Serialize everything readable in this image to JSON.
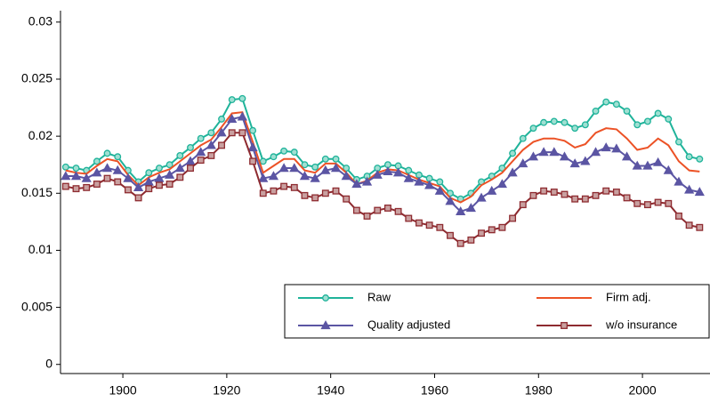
{
  "chart_data": {
    "type": "line",
    "x": [
      1889,
      1891,
      1893,
      1895,
      1897,
      1899,
      1901,
      1903,
      1905,
      1907,
      1909,
      1911,
      1913,
      1915,
      1917,
      1919,
      1921,
      1923,
      1925,
      1927,
      1929,
      1931,
      1933,
      1935,
      1937,
      1939,
      1941,
      1943,
      1945,
      1947,
      1949,
      1951,
      1953,
      1955,
      1957,
      1959,
      1961,
      1963,
      1965,
      1967,
      1969,
      1971,
      1973,
      1975,
      1977,
      1979,
      1981,
      1983,
      1985,
      1987,
      1989,
      1991,
      1993,
      1995,
      1997,
      1999,
      2001,
      2003,
      2005,
      2007,
      2009,
      2011
    ],
    "series": [
      {
        "name": "Raw",
        "color": "#1fb39a",
        "marker": "circle",
        "values": [
          0.0173,
          0.0172,
          0.017,
          0.0178,
          0.0185,
          0.0182,
          0.017,
          0.016,
          0.0168,
          0.0172,
          0.0175,
          0.0183,
          0.019,
          0.0198,
          0.0203,
          0.0215,
          0.0232,
          0.0233,
          0.0205,
          0.0178,
          0.0182,
          0.0187,
          0.0186,
          0.0175,
          0.0173,
          0.018,
          0.018,
          0.0172,
          0.0162,
          0.0165,
          0.0172,
          0.0175,
          0.0174,
          0.017,
          0.0166,
          0.0163,
          0.016,
          0.015,
          0.0145,
          0.015,
          0.016,
          0.0165,
          0.0172,
          0.0185,
          0.0198,
          0.0207,
          0.0212,
          0.0213,
          0.0212,
          0.0207,
          0.021,
          0.0222,
          0.023,
          0.0228,
          0.0222,
          0.021,
          0.0213,
          0.022,
          0.0215,
          0.0195,
          0.0182,
          0.018
        ]
      },
      {
        "name": "Firm adj.",
        "color": "#ec5226",
        "marker": "none",
        "values": [
          0.017,
          0.0168,
          0.0167,
          0.0174,
          0.018,
          0.0178,
          0.0166,
          0.0157,
          0.0164,
          0.0168,
          0.0171,
          0.0178,
          0.0185,
          0.0192,
          0.0197,
          0.0208,
          0.022,
          0.0221,
          0.0195,
          0.0168,
          0.0174,
          0.018,
          0.018,
          0.017,
          0.0168,
          0.0176,
          0.0176,
          0.0168,
          0.0158,
          0.0161,
          0.0168,
          0.0171,
          0.017,
          0.0166,
          0.0162,
          0.0159,
          0.0156,
          0.0146,
          0.0142,
          0.0147,
          0.0157,
          0.0162,
          0.0168,
          0.0178,
          0.0188,
          0.0195,
          0.0198,
          0.0198,
          0.0196,
          0.019,
          0.0193,
          0.0203,
          0.0207,
          0.0206,
          0.0198,
          0.0188,
          0.019,
          0.0198,
          0.0192,
          0.0178,
          0.017,
          0.0169
        ]
      },
      {
        "name": "Quality adjusted",
        "color": "#5b55a3",
        "marker": "triangle",
        "values": [
          0.0165,
          0.0165,
          0.0163,
          0.0168,
          0.0172,
          0.017,
          0.0163,
          0.0155,
          0.016,
          0.0163,
          0.0166,
          0.0172,
          0.0178,
          0.0186,
          0.0192,
          0.0203,
          0.0215,
          0.0217,
          0.019,
          0.0163,
          0.0165,
          0.0172,
          0.0172,
          0.0165,
          0.0163,
          0.017,
          0.0172,
          0.0165,
          0.0158,
          0.016,
          0.0166,
          0.0169,
          0.0168,
          0.0163,
          0.016,
          0.0157,
          0.0152,
          0.0143,
          0.0134,
          0.0137,
          0.0146,
          0.0152,
          0.0158,
          0.0168,
          0.0176,
          0.0182,
          0.0186,
          0.0186,
          0.0182,
          0.0176,
          0.0178,
          0.0186,
          0.019,
          0.0189,
          0.0182,
          0.0174,
          0.0174,
          0.0177,
          0.017,
          0.016,
          0.0153,
          0.0151
        ]
      },
      {
        "name": "w/o insurance",
        "color": "#8e2b30",
        "marker": "square",
        "values": [
          0.0156,
          0.0154,
          0.0155,
          0.0158,
          0.0163,
          0.016,
          0.0153,
          0.0146,
          0.0154,
          0.0157,
          0.0158,
          0.0164,
          0.0172,
          0.0179,
          0.0183,
          0.0192,
          0.0203,
          0.0203,
          0.0178,
          0.015,
          0.0152,
          0.0156,
          0.0155,
          0.0148,
          0.0146,
          0.015,
          0.0152,
          0.0145,
          0.0135,
          0.013,
          0.0135,
          0.0137,
          0.0134,
          0.0128,
          0.0124,
          0.0122,
          0.012,
          0.0113,
          0.0106,
          0.0109,
          0.0115,
          0.0118,
          0.012,
          0.0128,
          0.014,
          0.0148,
          0.0152,
          0.0151,
          0.0149,
          0.0145,
          0.0145,
          0.0148,
          0.0152,
          0.0151,
          0.0146,
          0.0141,
          0.014,
          0.0142,
          0.0141,
          0.013,
          0.0122,
          0.012
        ]
      }
    ],
    "xlim": [
      1888,
      2013
    ],
    "xticks": [
      1900,
      1920,
      1940,
      1960,
      1980,
      2000
    ],
    "ylim": [
      -0.0008,
      0.031
    ],
    "yticks": [
      0,
      0.005,
      0.01,
      0.015,
      0.02,
      0.025,
      0.03
    ],
    "grid": false,
    "legend": "lower right"
  }
}
